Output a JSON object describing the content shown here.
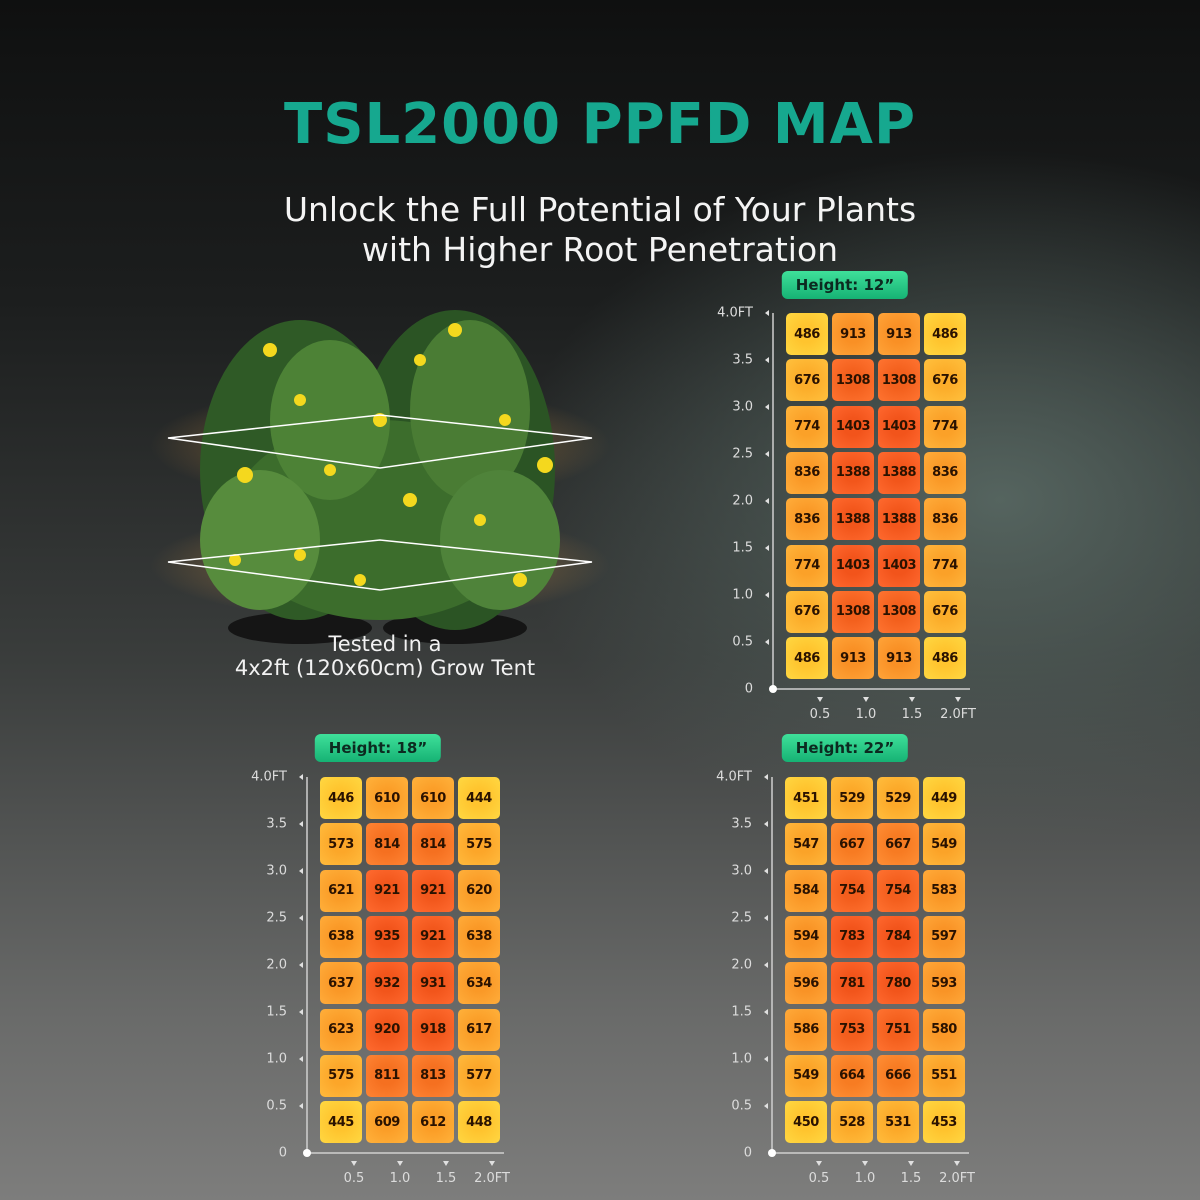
{
  "header": {
    "title": "TSL2000 PPFD MAP",
    "subtitle": [
      "Unlock the Full Potential of Your Plants",
      "with Higher Root Penetration"
    ]
  },
  "caption": [
    "Tested in a",
    "4x2ft (120x60cm) Grow Tent"
  ],
  "y_labels": [
    "4.0FT",
    "3.5",
    "3.0",
    "2.5",
    "2.0",
    "1.5",
    "1.0",
    "0.5",
    "0"
  ],
  "x_labels": [
    "0.5",
    "1.0",
    "1.5",
    "2.0FT"
  ],
  "maps": [
    {
      "label": "Height: 12”",
      "rows": [
        [
          486,
          913,
          913,
          486
        ],
        [
          676,
          1308,
          1308,
          676
        ],
        [
          774,
          1403,
          1403,
          774
        ],
        [
          836,
          1388,
          1388,
          836
        ],
        [
          836,
          1388,
          1388,
          836
        ],
        [
          774,
          1403,
          1403,
          774
        ],
        [
          676,
          1308,
          1308,
          676
        ],
        [
          486,
          913,
          913,
          486
        ]
      ]
    },
    {
      "label": "Height: 18”",
      "rows": [
        [
          446,
          610,
          610,
          444
        ],
        [
          573,
          814,
          814,
          575
        ],
        [
          621,
          921,
          921,
          620
        ],
        [
          638,
          935,
          921,
          638
        ],
        [
          637,
          932,
          931,
          634
        ],
        [
          623,
          920,
          918,
          617
        ],
        [
          575,
          811,
          813,
          577
        ],
        [
          445,
          609,
          612,
          448
        ]
      ]
    },
    {
      "label": "Height: 22”",
      "rows": [
        [
          451,
          529,
          529,
          449
        ],
        [
          547,
          667,
          667,
          549
        ],
        [
          584,
          754,
          754,
          583
        ],
        [
          594,
          783,
          784,
          597
        ],
        [
          596,
          781,
          780,
          593
        ],
        [
          586,
          753,
          751,
          580
        ],
        [
          549,
          664,
          666,
          551
        ],
        [
          450,
          528,
          531,
          453
        ]
      ]
    }
  ]
}
